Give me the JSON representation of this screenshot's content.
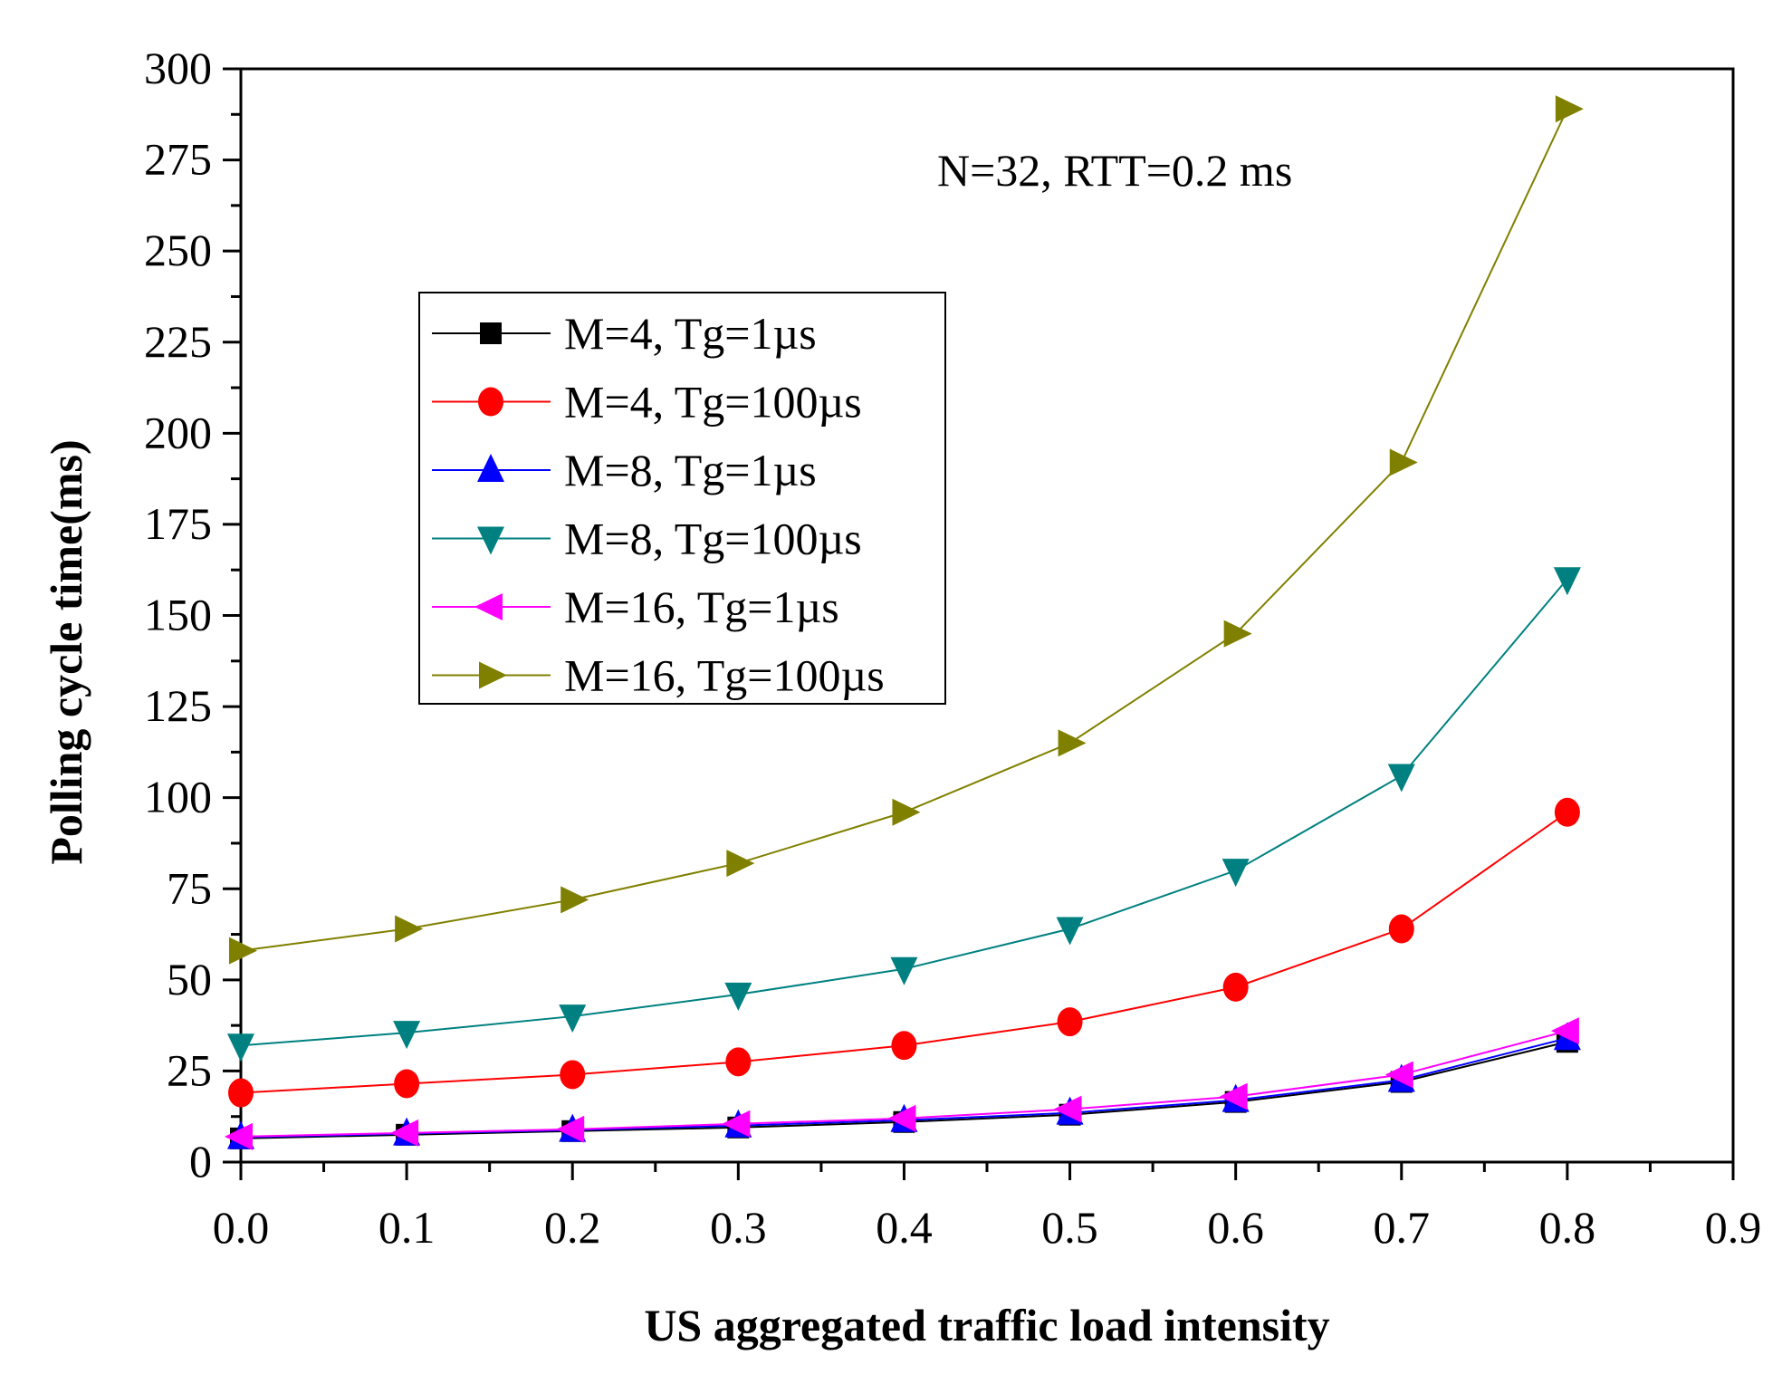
{
  "chart_data": {
    "type": "line",
    "title": "",
    "xlabel": "US aggregated traffic load intensity",
    "ylabel": "Polling cycle time(ms)",
    "xlim": [
      0,
      0.9
    ],
    "ylim": [
      0,
      300
    ],
    "xticks": [
      "0.0",
      "0.1",
      "0.2",
      "0.3",
      "0.4",
      "0.5",
      "0.6",
      "0.7",
      "0.8",
      "0.9"
    ],
    "yticks": [
      "0",
      "25",
      "50",
      "75",
      "100",
      "125",
      "150",
      "175",
      "200",
      "225",
      "250",
      "275",
      "300"
    ],
    "grid": false,
    "legend_position": "upper-left",
    "annotation": "N=32, RTT=0.2 ms",
    "x": [
      0,
      0.1,
      0.2,
      0.3,
      0.4,
      0.5,
      0.6,
      0.7,
      0.8
    ],
    "series": [
      {
        "name": "M=4, Tg=1µs",
        "color": "#000000",
        "marker": "square",
        "values": [
          6.5,
          7.5,
          8.5,
          9.5,
          11,
          13,
          16.5,
          22,
          33
        ]
      },
      {
        "name": "M=4, Tg=100µs",
        "color": "#ff0000",
        "marker": "circle",
        "values": [
          19,
          21.5,
          24,
          27.5,
          32,
          38.5,
          48,
          64,
          96
        ]
      },
      {
        "name": "M=8, Tg=1µs",
        "color": "#0000ff",
        "marker": "triangle-up",
        "values": [
          6.8,
          7.8,
          8.8,
          10,
          11.5,
          13.5,
          17,
          22.5,
          34
        ]
      },
      {
        "name": "M=8, Tg=100µs",
        "color": "#008080",
        "marker": "triangle-down",
        "values": [
          32,
          35.5,
          40,
          46,
          53,
          64,
          80,
          106,
          160
        ]
      },
      {
        "name": "M=16, Tg=1µs",
        "color": "#ff00ff",
        "marker": "triangle-left",
        "values": [
          7,
          8,
          9,
          10.5,
          12,
          14.5,
          18,
          24,
          36
        ]
      },
      {
        "name": "M=16, Tg=100µs",
        "color": "#808000",
        "marker": "triangle-right",
        "values": [
          58,
          64,
          72,
          82,
          96,
          115,
          145,
          192,
          289
        ]
      }
    ]
  }
}
